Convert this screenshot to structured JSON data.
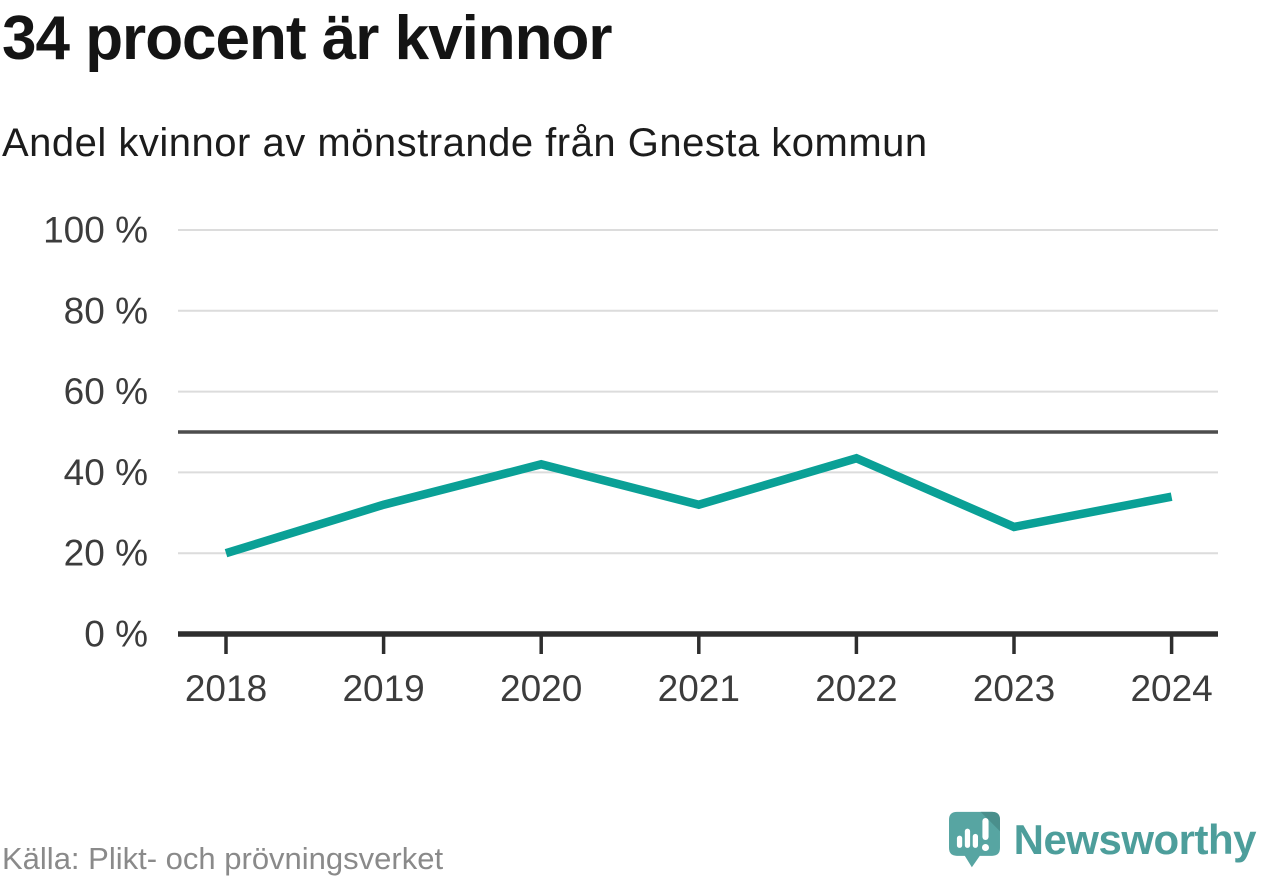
{
  "header": {
    "title": "34 procent är kvinnor",
    "subtitle": "Andel kvinnor av mönstrande från Gnesta kommun"
  },
  "chart_data": {
    "type": "line",
    "title": "34 procent är kvinnor",
    "subtitle": "Andel kvinnor av mönstrande från Gnesta kommun",
    "x": [
      2018,
      2019,
      2020,
      2021,
      2022,
      2023,
      2024
    ],
    "series": [
      {
        "name": "Andel kvinnor av mönstrande",
        "values": [
          20,
          32,
          42,
          32,
          43.5,
          26.5,
          34
        ]
      }
    ],
    "xlabel": "",
    "ylabel": "",
    "ylim": [
      0,
      100
    ],
    "yticks": [
      0,
      20,
      40,
      60,
      80,
      100
    ],
    "ytick_suffix": " %",
    "reference_line": 50,
    "grid": true,
    "legend": false
  },
  "footer": {
    "source": "Källa: Plikt- och prövningsverket",
    "brand_name": "Newsworthy"
  },
  "colors": {
    "line": "#0aa096",
    "gridline": "#dcdcdc",
    "reference_line": "#4d4d4d",
    "axis": "#2e2e2e",
    "tick_label": "#3c3c3c",
    "title_text": "#141414",
    "source_text": "#8a8a8a",
    "brand_teal": "#57a5a2",
    "brand_teal_dark": "#4a8f8c",
    "brand_text": "#4d9e9b"
  }
}
